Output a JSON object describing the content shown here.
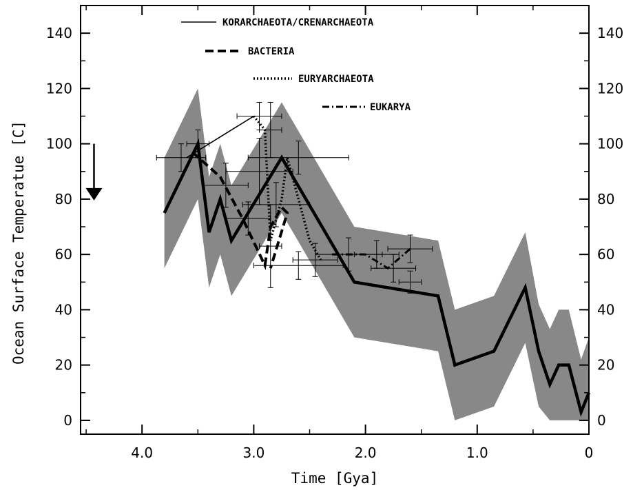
{
  "chart_data": {
    "type": "line",
    "title": "",
    "xlabel": "Time [Gya]",
    "ylabel": "Ocean Surface Temperatue  [C]",
    "xlim": [
      4.55,
      0.0
    ],
    "ylim": [
      -5,
      150
    ],
    "x_axis_reversed": true,
    "grid": false,
    "legend_position": "top-center",
    "x_ticks": [
      4.0,
      3.0,
      2.0,
      1.0,
      0.0
    ],
    "x_tick_labels": [
      "4.0",
      "3.0",
      "2.0",
      "1.0",
      "0"
    ],
    "y_ticks": [
      0,
      20,
      40,
      60,
      80,
      100,
      120,
      140
    ],
    "y_tick_labels": [
      "0",
      "20",
      "40",
      "60",
      "80",
      "100",
      "120",
      "140"
    ],
    "right_y_tick_labels": [
      "0",
      "20",
      "40",
      "60",
      "80",
      "100",
      "120",
      "140"
    ],
    "envelope": {
      "color": "#888888",
      "upper": [
        [
          3.8,
          95
        ],
        [
          3.5,
          120
        ],
        [
          3.4,
          88
        ],
        [
          3.3,
          100
        ],
        [
          3.2,
          85
        ],
        [
          2.75,
          115
        ],
        [
          2.1,
          70
        ],
        [
          1.35,
          65
        ],
        [
          1.2,
          40
        ],
        [
          0.85,
          45
        ],
        [
          0.57,
          68
        ],
        [
          0.45,
          42
        ],
        [
          0.35,
          33
        ],
        [
          0.27,
          40
        ],
        [
          0.18,
          40
        ],
        [
          0.07,
          22
        ],
        [
          0.0,
          30
        ]
      ],
      "lower": [
        [
          3.8,
          55
        ],
        [
          3.5,
          80
        ],
        [
          3.4,
          48
        ],
        [
          3.3,
          60
        ],
        [
          3.2,
          45
        ],
        [
          2.75,
          75
        ],
        [
          2.1,
          30
        ],
        [
          1.35,
          25
        ],
        [
          1.2,
          0
        ],
        [
          0.85,
          5
        ],
        [
          0.57,
          28
        ],
        [
          0.45,
          5
        ],
        [
          0.35,
          0
        ],
        [
          0.07,
          0
        ],
        [
          0.0,
          0
        ]
      ]
    },
    "series": [
      {
        "name": "",
        "style": "solid-thick",
        "color": "#000000",
        "x": [
          3.8,
          3.5,
          3.4,
          3.3,
          3.2,
          2.75,
          2.1,
          1.35,
          1.2,
          0.85,
          0.57,
          0.45,
          0.35,
          0.27,
          0.18,
          0.07,
          0.0
        ],
        "y": [
          75,
          100,
          68,
          80,
          65,
          95,
          50,
          45,
          20,
          25,
          48,
          25,
          13,
          20,
          20,
          3,
          10
        ]
      },
      {
        "name": "KORARCHAEOTA/CRENARCHAEOTA",
        "style": "solid",
        "color": "#000000",
        "x": [
          3.6,
          3.0
        ],
        "y": [
          95,
          110
        ]
      },
      {
        "name": "BACTERIA",
        "style": "dashed",
        "color": "#000000",
        "x": [
          3.55,
          3.3,
          3.1,
          2.9,
          2.9,
          2.85,
          2.75,
          2.7,
          2.85
        ],
        "y": [
          97,
          88,
          73,
          56,
          56,
          70,
          77,
          75,
          55
        ]
      },
      {
        "name": "EURYARCHAEOTA",
        "style": "dotted",
        "color": "#000000",
        "x": [
          3.0,
          2.9,
          2.85,
          2.75,
          2.7,
          2.5,
          2.4
        ],
        "y": [
          110,
          105,
          65,
          80,
          95,
          65,
          58
        ]
      },
      {
        "name": "EUKARYA",
        "style": "dashdot",
        "color": "#000000",
        "x": [
          2.3,
          2.0,
          1.8,
          1.6
        ],
        "y": [
          60,
          60,
          55,
          62
        ]
      }
    ],
    "error_bars": [
      {
        "x": 3.65,
        "y": 95,
        "xerr": 0.22,
        "yerr": 5
      },
      {
        "x": 3.5,
        "y": 100,
        "xerr": 0.1,
        "yerr": 5
      },
      {
        "x": 3.25,
        "y": 85,
        "xerr": 0.2,
        "yerr": 8
      },
      {
        "x": 3.05,
        "y": 73,
        "xerr": 0.2,
        "yerr": 6
      },
      {
        "x": 2.95,
        "y": 110,
        "xerr": 0.2,
        "yerr": 5
      },
      {
        "x": 2.95,
        "y": 90,
        "xerr": 0.3,
        "yerr": 12
      },
      {
        "x": 2.85,
        "y": 105,
        "xerr": 0.1,
        "yerr": 10
      },
      {
        "x": 2.8,
        "y": 78,
        "xerr": 0.3,
        "yerr": 8
      },
      {
        "x": 2.85,
        "y": 63,
        "xerr": 0.1,
        "yerr": 15
      },
      {
        "x": 2.6,
        "y": 95,
        "xerr": 0.45,
        "yerr": 6
      },
      {
        "x": 2.6,
        "y": 56,
        "xerr": 0.4,
        "yerr": 5
      },
      {
        "x": 2.45,
        "y": 58,
        "xerr": 0.2,
        "yerr": 6
      },
      {
        "x": 2.15,
        "y": 60,
        "xerr": 0.3,
        "yerr": 6
      },
      {
        "x": 1.9,
        "y": 60,
        "xerr": 0.2,
        "yerr": 5
      },
      {
        "x": 1.75,
        "y": 55,
        "xerr": 0.2,
        "yerr": 5
      },
      {
        "x": 1.6,
        "y": 62,
        "xerr": 0.2,
        "yerr": 5
      },
      {
        "x": 1.6,
        "y": 50,
        "xerr": 0.1,
        "yerr": 4
      }
    ],
    "annotations": [
      {
        "type": "arrow",
        "direction": "down",
        "x": 4.43,
        "y_from": 100,
        "y_to": 80
      }
    ],
    "legend": [
      {
        "label": "KORARCHAEOTA/CRENARCHAEOTA",
        "style": "solid"
      },
      {
        "label": "BACTERIA",
        "style": "dashed"
      },
      {
        "label": "EURYARCHAEOTA",
        "style": "dotted"
      },
      {
        "label": "EUKARYA",
        "style": "dashdot"
      }
    ]
  }
}
